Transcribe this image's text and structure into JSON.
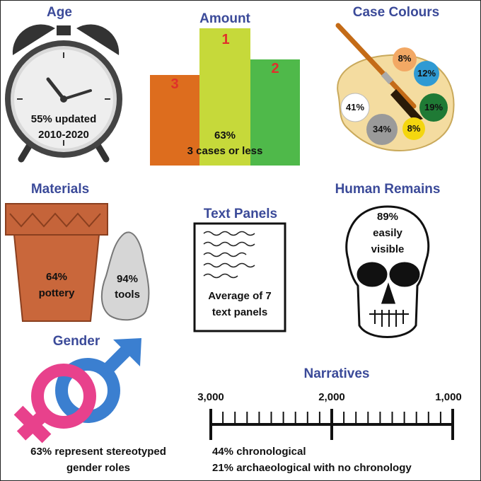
{
  "titles": {
    "age": "Age",
    "amount": "Amount",
    "case_colours": "Case Colours",
    "materials": "Materials",
    "text_panels": "Text Panels",
    "human_remains": "Human Remains",
    "gender": "Gender",
    "narratives": "Narratives"
  },
  "age": {
    "line1": "55% updated",
    "line2": "2010-2020"
  },
  "amount": {
    "bars": [
      {
        "rank": "3",
        "color": "#dd6d1e"
      },
      {
        "rank": "1",
        "color": "#c6d93a"
      },
      {
        "rank": "2",
        "color": "#4fb94a"
      }
    ],
    "line1": "63%",
    "line2": "3 cases or less"
  },
  "case_colours": {
    "swatches": [
      {
        "label": "8%",
        "color": "#f2a864"
      },
      {
        "label": "12%",
        "color": "#2f9ad3"
      },
      {
        "label": "41%",
        "color": "#ffffff"
      },
      {
        "label": "19%",
        "color": "#1f7a35"
      },
      {
        "label": "34%",
        "color": "#9a9a9a"
      },
      {
        "label": "8%",
        "color": "#f4d60f"
      }
    ]
  },
  "materials": {
    "pottery_line1": "64%",
    "pottery_line2": "pottery",
    "tools_line1": "94%",
    "tools_line2": "tools"
  },
  "text_panels": {
    "line1": "Average of 7",
    "line2": "text panels"
  },
  "human_remains": {
    "line1": "89%",
    "line2": "easily",
    "line3": "visible"
  },
  "gender": {
    "line1": "63% represent stereotyped",
    "line2": "gender roles"
  },
  "narratives": {
    "axis_labels": [
      "3,000",
      "2,000",
      "1,000"
    ],
    "line1": "44% chronological",
    "line2": "21% archaeological with no chronology"
  },
  "colors": {
    "title": "#3b4a99",
    "rank": "#e0302a",
    "female": "#e8418c",
    "male": "#3b7fd0"
  }
}
